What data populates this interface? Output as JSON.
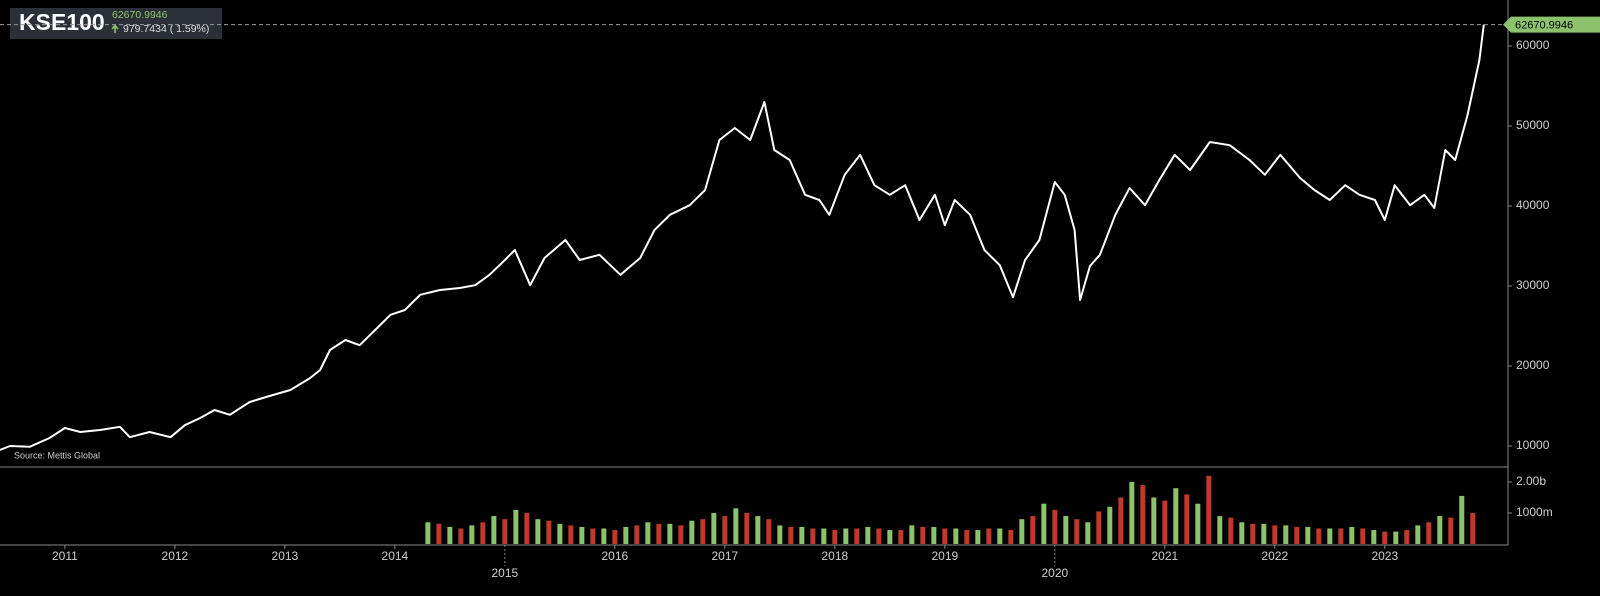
{
  "chart_data": {
    "type": "line",
    "title": "KSE100",
    "price": 62670.9946,
    "change": "979.7434 ( 1.59%)",
    "source": "Source: Mettis Global",
    "x": [
      2010.41,
      2010.5,
      2010.68,
      2010.86,
      2011.0,
      2011.14,
      2011.32,
      2011.5,
      2011.59,
      2011.77,
      2011.96,
      2012.09,
      2012.23,
      2012.36,
      2012.5,
      2012.68,
      2012.86,
      2013.05,
      2013.23,
      2013.32,
      2013.41,
      2013.55,
      2013.68,
      2013.82,
      2013.96,
      2014.09,
      2014.23,
      2014.41,
      2014.59,
      2014.73,
      2014.86,
      2015.0,
      2015.09,
      2015.23,
      2015.36,
      2015.55,
      2015.68,
      2015.86,
      2016.05,
      2016.23,
      2016.36,
      2016.5,
      2016.68,
      2016.82,
      2016.95,
      2017.09,
      2017.23,
      2017.36,
      2017.45,
      2017.59,
      2017.73,
      2017.86,
      2017.95,
      2018.09,
      2018.23,
      2018.36,
      2018.5,
      2018.64,
      2018.77,
      2018.91,
      2019.0,
      2019.09,
      2019.23,
      2019.36,
      2019.5,
      2019.62,
      2019.73,
      2019.86,
      2020.0,
      2020.09,
      2020.18,
      2020.23,
      2020.32,
      2020.41,
      2020.55,
      2020.68,
      2020.82,
      2020.95,
      2021.09,
      2021.23,
      2021.41,
      2021.59,
      2021.77,
      2021.91,
      2022.05,
      2022.23,
      2022.36,
      2022.5,
      2022.64,
      2022.77,
      2022.91,
      2023.0,
      2023.09,
      2023.23,
      2023.36,
      2023.45,
      2023.55,
      2023.64,
      2023.75,
      2023.86,
      2023.9
    ],
    "series": [
      {
        "color": "#ffffff",
        "values": [
          9500,
          10000,
          9900,
          11000,
          12250,
          11750,
          12000,
          12400,
          11100,
          11750,
          11100,
          12600,
          13500,
          14500,
          13900,
          15500,
          16250,
          17000,
          18500,
          19500,
          22000,
          23250,
          22600,
          24500,
          26400,
          27000,
          28900,
          29500,
          29750,
          30100,
          31400,
          33250,
          34500,
          30100,
          33500,
          35750,
          33250,
          33900,
          31400,
          33500,
          37000,
          38900,
          40100,
          42000,
          48250,
          49750,
          48250,
          53000,
          47000,
          45750,
          41400,
          40750,
          38900,
          43900,
          46400,
          42600,
          41400,
          42600,
          38250,
          41400,
          37600,
          40750,
          38900,
          34500,
          32600,
          28600,
          33250,
          35750,
          43000,
          41400,
          37000,
          28250,
          32500,
          33900,
          38900,
          42250,
          40100,
          43250,
          46400,
          44500,
          48000,
          47600,
          45750,
          43900,
          46400,
          43500,
          42000,
          40750,
          42600,
          41400,
          40750,
          38250,
          42600,
          40100,
          41400,
          39750,
          47000,
          45750,
          51250,
          58250,
          62670.9946
        ]
      }
    ],
    "xlim": [
      2010.41,
      2024.12
    ],
    "xticks": [
      2011,
      2012,
      2013,
      2014,
      2015,
      2016,
      2017,
      2018,
      2019,
      2020,
      2021,
      2022,
      2023
    ],
    "ylim": [
      7375,
      65750
    ],
    "yticks": [
      10000,
      20000,
      30000,
      40000,
      50000,
      60000
    ],
    "volume": {
      "ylim": [
        0,
        2450
      ],
      "yticks": [
        {
          "value": 2000,
          "label": "2.00b"
        },
        {
          "value": 1000,
          "label": "1000m"
        }
      ],
      "series": [
        {
          "color": "#8cc26c",
          "x": [
            2014.3,
            2014.5,
            2014.7,
            2014.9,
            2015.1,
            2015.3,
            2015.5,
            2015.7,
            2015.9,
            2016.1,
            2016.3,
            2016.5,
            2016.7,
            2016.9,
            2017.1,
            2017.3,
            2017.5,
            2017.7,
            2017.9,
            2018.1,
            2018.3,
            2018.5,
            2018.7,
            2018.9,
            2019.1,
            2019.3,
            2019.5,
            2019.7,
            2019.9,
            2020.1,
            2020.3,
            2020.5,
            2020.7,
            2020.9,
            2021.1,
            2021.3,
            2021.5,
            2021.7,
            2021.9,
            2022.1,
            2022.3,
            2022.5,
            2022.7,
            2022.9,
            2023.1,
            2023.3,
            2023.5,
            2023.7
          ],
          "values": [
            700,
            550,
            600,
            900,
            1100,
            800,
            650,
            550,
            500,
            550,
            700,
            650,
            750,
            1000,
            1150,
            900,
            600,
            550,
            500,
            500,
            550,
            450,
            600,
            550,
            500,
            450,
            500,
            800,
            1300,
            900,
            700,
            1200,
            2000,
            1500,
            1800,
            1300,
            900,
            700,
            650,
            600,
            550,
            500,
            550,
            450,
            400,
            600,
            900,
            1550
          ]
        },
        {
          "color": "#c0392b",
          "x": [
            2014.4,
            2014.6,
            2014.8,
            2015.0,
            2015.2,
            2015.4,
            2015.6,
            2015.8,
            2016.0,
            2016.2,
            2016.4,
            2016.6,
            2016.8,
            2017.0,
            2017.2,
            2017.4,
            2017.6,
            2017.8,
            2018.0,
            2018.2,
            2018.4,
            2018.6,
            2018.8,
            2019.0,
            2019.2,
            2019.4,
            2019.6,
            2019.8,
            2020.0,
            2020.2,
            2020.4,
            2020.6,
            2020.8,
            2021.0,
            2021.2,
            2021.4,
            2021.6,
            2021.8,
            2022.0,
            2022.2,
            2022.4,
            2022.6,
            2022.8,
            2023.0,
            2023.2,
            2023.4,
            2023.6,
            2023.8
          ],
          "values": [
            650,
            500,
            700,
            800,
            1000,
            750,
            600,
            500,
            450,
            600,
            650,
            600,
            800,
            900,
            1000,
            800,
            550,
            500,
            450,
            500,
            500,
            450,
            550,
            500,
            450,
            500,
            450,
            900,
            1100,
            800,
            1050,
            1500,
            1900,
            1400,
            1600,
            2200,
            850,
            650,
            600,
            550,
            500,
            500,
            500,
            400,
            450,
            700,
            850,
            1000
          ]
        }
      ]
    }
  }
}
